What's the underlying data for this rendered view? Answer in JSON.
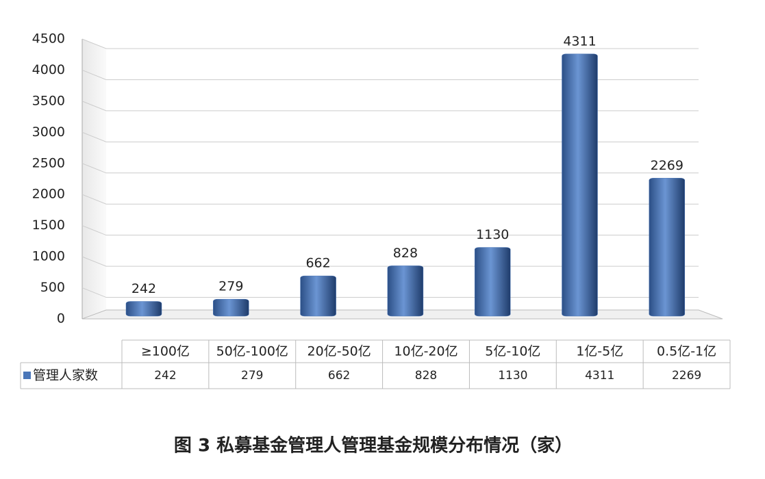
{
  "chart_data": {
    "type": "bar",
    "title": "图 3 私募基金管理人管理基金规模分布情况（家）",
    "categories": [
      "≥100亿",
      "50亿-100亿",
      "20亿-50亿",
      "10亿-20亿",
      "5亿-10亿",
      "1亿-5亿",
      "0.5亿-1亿"
    ],
    "series": [
      {
        "name": "管理人家数",
        "color": "#4a76b8",
        "values": [
          242,
          279,
          662,
          828,
          1130,
          4311,
          2269
        ]
      }
    ],
    "ylim": [
      0,
      4500
    ],
    "yticks": [
      0,
      500,
      1000,
      1500,
      2000,
      2500,
      3000,
      3500,
      4000,
      4500
    ],
    "grid": true
  }
}
